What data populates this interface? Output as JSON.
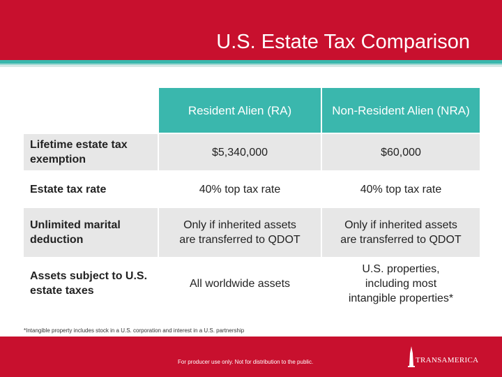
{
  "header": {
    "title": "U.S. Estate Tax Comparison",
    "brand_color": "#c8102e",
    "accent_color": "#3ab7ad"
  },
  "table": {
    "columns": [
      "Resident Alien (RA)",
      "Non-Resident Alien (NRA)"
    ],
    "rows": [
      {
        "label": "Lifetime estate tax exemption",
        "ra": "$5,340,000",
        "nra": "$60,000"
      },
      {
        "label": "Estate tax rate",
        "ra": "40% top tax rate",
        "nra": "40% top tax rate"
      },
      {
        "label": "Unlimited marital deduction",
        "ra": "Only if inherited assets are transferred to QDOT",
        "nra": "Only if inherited assets are transferred to QDOT"
      },
      {
        "label": "Assets subject to U.S. estate taxes",
        "ra": "All worldwide assets",
        "nra": "U.S. properties, including most intangible properties*"
      }
    ]
  },
  "footnote": "*Intangible property includes stock in a U.S. corporation and interest in a U.S. partnership",
  "footer": {
    "disclaimer": "For producer use only. Not for distribution to the public.",
    "logo_text": "TRANSAMERICA",
    "logo_icon": "pyramid-icon"
  }
}
